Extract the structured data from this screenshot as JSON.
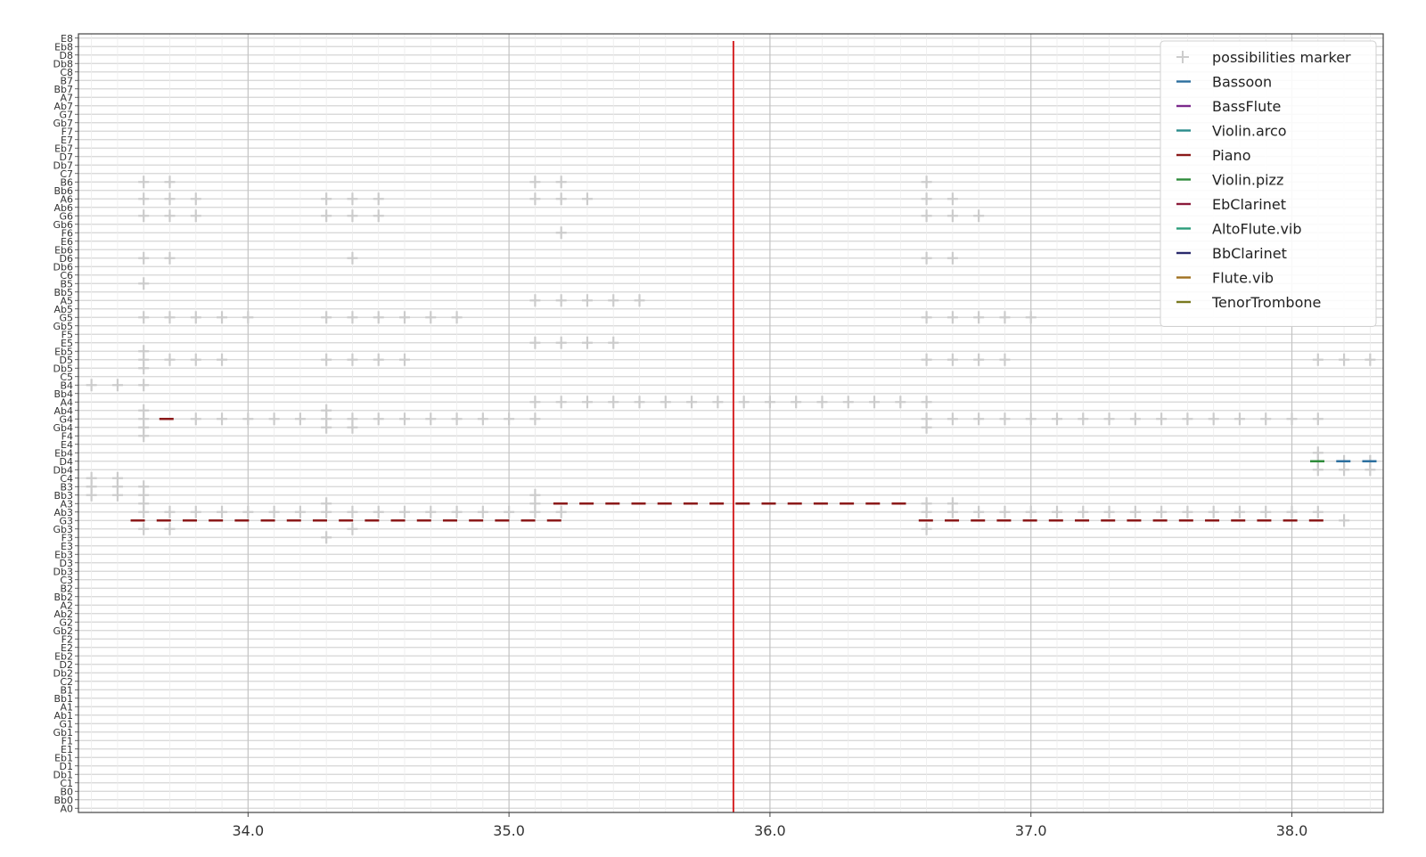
{
  "chart_data": {
    "type": "scatter",
    "title": "",
    "xlabel": "",
    "ylabel": "",
    "xlim": [
      33.35,
      38.35
    ],
    "xticks": [
      34.0,
      35.0,
      36.0,
      37.0,
      38.0
    ],
    "xtick_labels": [
      "34.0",
      "35.0",
      "36.0",
      "37.0",
      "38.0"
    ],
    "grid": true,
    "legend_position": "top-right",
    "y_categories": [
      "A0",
      "Bb0",
      "B0",
      "C1",
      "Db1",
      "D1",
      "Eb1",
      "E1",
      "F1",
      "Gb1",
      "G1",
      "Ab1",
      "A1",
      "Bb1",
      "B1",
      "C2",
      "Db2",
      "D2",
      "Eb2",
      "E2",
      "F2",
      "Gb2",
      "G2",
      "Ab2",
      "A2",
      "Bb2",
      "B2",
      "C3",
      "Db3",
      "D3",
      "Eb3",
      "E3",
      "F3",
      "Gb3",
      "G3",
      "Ab3",
      "A3",
      "Bb3",
      "B3",
      "C4",
      "Db4",
      "D4",
      "Eb4",
      "E4",
      "F4",
      "Gb4",
      "G4",
      "Ab4",
      "A4",
      "Bb4",
      "B4",
      "C5",
      "Db5",
      "D5",
      "Eb5",
      "E5",
      "F5",
      "Gb5",
      "G5",
      "Ab5",
      "A5",
      "Bb5",
      "B5",
      "C6",
      "Db6",
      "D6",
      "Eb6",
      "E6",
      "F6",
      "Gb6",
      "G6",
      "Ab6",
      "A6",
      "Bb6",
      "B6",
      "C7",
      "Db7",
      "D7",
      "Eb7",
      "E7",
      "F7",
      "Gb7",
      "G7",
      "Ab7",
      "A7",
      "Bb7",
      "B7",
      "C8",
      "Db8",
      "D8",
      "Eb8",
      "E8"
    ],
    "cursor_x": 35.86,
    "cursor_color": "#d62728",
    "marker_color": "#cccccc",
    "legend": [
      {
        "name": "possibilities marker",
        "color": "#cccccc",
        "marker": "plus"
      },
      {
        "name": "Bassoon",
        "color": "#2c6f9e",
        "marker": "line"
      },
      {
        "name": "BassFlute",
        "color": "#7b2a8c",
        "marker": "line"
      },
      {
        "name": "Violin.arco",
        "color": "#2a8c8c",
        "marker": "line"
      },
      {
        "name": "Piano",
        "color": "#8b1a1a",
        "marker": "line"
      },
      {
        "name": "Violin.pizz",
        "color": "#2e8b3a",
        "marker": "line"
      },
      {
        "name": "EbClarinet",
        "color": "#8b1a3a",
        "marker": "line"
      },
      {
        "name": "AltoFlute.vib",
        "color": "#2a9c7a",
        "marker": "line"
      },
      {
        "name": "BbClarinet",
        "color": "#2a2a6c",
        "marker": "line"
      },
      {
        "name": "Flute.vib",
        "color": "#a07020",
        "marker": "line"
      },
      {
        "name": "TenorTrombone",
        "color": "#7a7a20",
        "marker": "line"
      }
    ],
    "markers": [
      {
        "note": "B4",
        "x": [
          33.4,
          33.5,
          33.6
        ]
      },
      {
        "note": "B6",
        "x": [
          33.6,
          33.7,
          35.1,
          35.2,
          36.6
        ]
      },
      {
        "note": "A6",
        "x": [
          33.6,
          33.7,
          33.8,
          34.3,
          34.4,
          34.5,
          35.1,
          35.2,
          35.3,
          36.6,
          36.7
        ]
      },
      {
        "note": "G6",
        "x": [
          33.6,
          33.7,
          33.8,
          34.3,
          34.4,
          34.5,
          36.6,
          36.7,
          36.8
        ]
      },
      {
        "note": "F6",
        "x": [
          35.2
        ]
      },
      {
        "note": "D6",
        "x": [
          33.6,
          33.7,
          34.4,
          36.6,
          36.7
        ]
      },
      {
        "note": "B5",
        "x": [
          33.6
        ]
      },
      {
        "note": "A5",
        "x": [
          35.1,
          35.2,
          35.3,
          35.4,
          35.5
        ]
      },
      {
        "note": "G5",
        "x": [
          33.6,
          33.7,
          33.8,
          33.9,
          34.0,
          34.3,
          34.4,
          34.5,
          34.6,
          34.7,
          34.8,
          36.6,
          36.7,
          36.8,
          36.9,
          37.0
        ]
      },
      {
        "note": "E5",
        "x": [
          35.1,
          35.2,
          35.3,
          35.4
        ]
      },
      {
        "note": "Eb5",
        "x": [
          33.6
        ]
      },
      {
        "note": "D5",
        "x": [
          33.6,
          33.7,
          33.8,
          33.9,
          34.3,
          34.4,
          34.5,
          34.6,
          36.6,
          36.7,
          36.8,
          36.9,
          38.1,
          38.2,
          38.3
        ]
      },
      {
        "note": "Db5",
        "x": [
          33.6
        ]
      },
      {
        "note": "A4",
        "x": [
          35.1,
          35.2,
          35.3,
          35.4,
          35.5,
          35.6,
          35.7,
          35.8,
          35.9,
          36.0,
          36.1,
          36.2,
          36.3,
          36.4,
          36.5,
          36.6
        ]
      },
      {
        "note": "Ab4",
        "x": [
          33.6,
          34.3
        ]
      },
      {
        "note": "G4",
        "x": [
          33.6,
          33.8,
          33.9,
          34.0,
          34.1,
          34.2,
          34.3,
          34.4,
          34.5,
          34.6,
          34.7,
          34.8,
          34.9,
          35.0,
          35.1,
          36.6,
          36.7,
          36.8,
          36.9,
          37.0,
          37.1,
          37.2,
          37.3,
          37.4,
          37.5,
          37.6,
          37.7,
          37.8,
          37.9,
          38.0,
          38.1
        ]
      },
      {
        "note": "Gb4",
        "x": [
          33.6,
          34.3,
          34.4,
          36.6
        ]
      },
      {
        "note": "F4",
        "x": [
          33.6
        ]
      },
      {
        "note": "Eb4",
        "x": [
          38.1
        ]
      },
      {
        "note": "D4",
        "x": [
          38.1,
          38.2,
          38.3
        ]
      },
      {
        "note": "Db4",
        "x": [
          38.1,
          38.2,
          38.3
        ]
      },
      {
        "note": "C4",
        "x": [
          33.4,
          33.5
        ]
      },
      {
        "note": "B3",
        "x": [
          33.4,
          33.5,
          33.6
        ]
      },
      {
        "note": "Bb3",
        "x": [
          33.4,
          33.5,
          33.6,
          35.1
        ]
      },
      {
        "note": "A3",
        "x": [
          33.6,
          34.3,
          35.1,
          36.6,
          36.7
        ]
      },
      {
        "note": "Ab3",
        "x": [
          33.6,
          33.7,
          33.8,
          33.9,
          34.0,
          34.1,
          34.2,
          34.3,
          34.4,
          34.5,
          34.6,
          34.7,
          34.8,
          34.9,
          35.0,
          35.1,
          35.2,
          36.6,
          36.7,
          36.8,
          36.9,
          37.0,
          37.1,
          37.2,
          37.3,
          37.4,
          37.5,
          37.6,
          37.7,
          37.8,
          37.9,
          38.0,
          38.1
        ]
      },
      {
        "note": "G3",
        "x": [
          38.2
        ]
      },
      {
        "note": "Gb3",
        "x": [
          33.6,
          33.7,
          34.4,
          36.6
        ]
      },
      {
        "note": "F3",
        "x": [
          34.3
        ]
      }
    ],
    "series": [
      {
        "name": "Piano",
        "color": "#8b1a1a",
        "segments": [
          {
            "note": "G4",
            "start": 33.66,
            "end": 33.72
          },
          {
            "note": "G3",
            "start": 33.55,
            "end": 35.22
          },
          {
            "note": "A3",
            "start": 35.17,
            "end": 36.54
          },
          {
            "note": "G3",
            "start": 36.57,
            "end": 38.14
          }
        ]
      },
      {
        "name": "Violin.pizz",
        "color": "#2e8b3a",
        "segments": [
          {
            "note": "D4",
            "start": 38.07,
            "end": 38.13
          }
        ]
      },
      {
        "name": "Bassoon",
        "color": "#2c6f9e",
        "segments": [
          {
            "note": "D4",
            "start": 38.17,
            "end": 38.34
          }
        ]
      }
    ]
  }
}
